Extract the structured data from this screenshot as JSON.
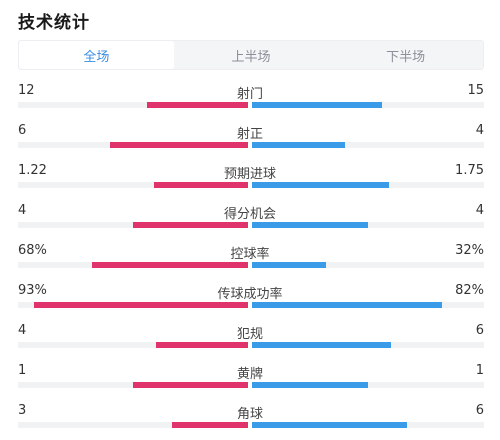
{
  "title": "技术统计",
  "tabs": [
    {
      "label": "全场",
      "active": true
    },
    {
      "label": "上半场",
      "active": false
    },
    {
      "label": "下半场",
      "active": false
    }
  ],
  "colors": {
    "home": "#e0336b",
    "away": "#3a9be8",
    "active_tab": "#3a8ee6",
    "track": "#f1f2f4"
  },
  "stats": [
    {
      "label": "射门",
      "left": "12",
      "right": "15",
      "left_fill": 0.44,
      "right_fill": 0.56
    },
    {
      "label": "射正",
      "left": "6",
      "right": "4",
      "left_fill": 0.6,
      "right_fill": 0.4
    },
    {
      "label": "预期进球",
      "left": "1.22",
      "right": "1.75",
      "left_fill": 0.41,
      "right_fill": 0.59
    },
    {
      "label": "得分机会",
      "left": "4",
      "right": "4",
      "left_fill": 0.5,
      "right_fill": 0.5
    },
    {
      "label": "控球率",
      "left": "68%",
      "right": "32%",
      "left_fill": 0.68,
      "right_fill": 0.32
    },
    {
      "label": "传球成功率",
      "left": "93%",
      "right": "82%",
      "left_fill": 0.93,
      "right_fill": 0.82
    },
    {
      "label": "犯规",
      "left": "4",
      "right": "6",
      "left_fill": 0.4,
      "right_fill": 0.6
    },
    {
      "label": "黄牌",
      "left": "1",
      "right": "1",
      "left_fill": 0.5,
      "right_fill": 0.5
    },
    {
      "label": "角球",
      "left": "3",
      "right": "6",
      "left_fill": 0.33,
      "right_fill": 0.67
    }
  ]
}
